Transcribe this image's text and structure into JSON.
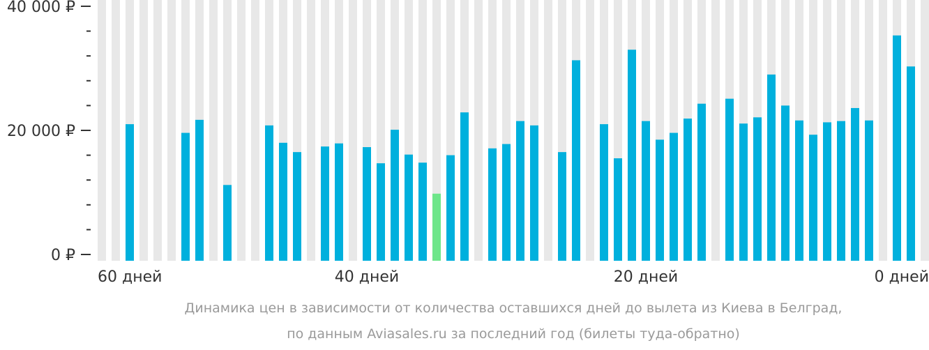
{
  "chart_data": {
    "type": "bar",
    "title": "",
    "xlabel": "",
    "ylabel": "",
    "ylim": [
      0,
      40000
    ],
    "y_ticks": [
      {
        "value": 0,
        "label": "0 ₽"
      },
      {
        "value": 20000,
        "label": "20 000 ₽"
      },
      {
        "value": 40000,
        "label": "40 000 ₽"
      }
    ],
    "y_minor_step": 4000,
    "x_ticks": [
      {
        "day": 60,
        "label": "60 дней"
      },
      {
        "day": 40,
        "label": "40 дней"
      },
      {
        "day": 20,
        "label": "20 дней"
      },
      {
        "day": 0,
        "label": "0 дней"
      }
    ],
    "days_left": [
      59,
      58,
      57,
      56,
      55,
      54,
      53,
      52,
      51,
      50,
      49,
      48,
      47,
      46,
      45,
      44,
      43,
      42,
      41,
      40,
      39,
      38,
      37,
      36,
      35,
      34,
      33,
      32,
      31,
      30,
      29,
      28,
      27,
      26,
      25,
      24,
      23,
      22,
      21,
      20,
      19,
      18,
      17,
      16,
      15,
      14,
      13,
      12,
      11,
      10,
      9,
      8,
      7,
      6,
      5,
      4,
      3,
      2,
      1,
      0
    ],
    "values": [
      null,
      null,
      21000,
      null,
      null,
      null,
      19600,
      21700,
      null,
      11200,
      null,
      null,
      20800,
      18000,
      16500,
      null,
      17400,
      17900,
      null,
      17300,
      14700,
      20100,
      16100,
      14800,
      9800,
      16000,
      22900,
      null,
      17100,
      17800,
      21500,
      20800,
      null,
      16500,
      31300,
      null,
      21000,
      15500,
      33000,
      21500,
      18500,
      19600,
      21900,
      24300,
      null,
      25100,
      21100,
      22100,
      29000,
      24000,
      21600,
      19300,
      21300,
      21500,
      23600,
      21600,
      null,
      35300,
      30300,
      null
    ],
    "highlight_index": 24,
    "colors": {
      "bar": "#00b0dd",
      "highlight": "#6ee68a",
      "background_bar": "#e8e8e8",
      "axis_text": "#333333"
    }
  },
  "caption": {
    "line1": "Динамика цен в зависимости от количества оставшихся дней до вылета из Киева в Белград,",
    "line2": "по данным Aviasales.ru за последний год (билеты туда-обратно)"
  }
}
